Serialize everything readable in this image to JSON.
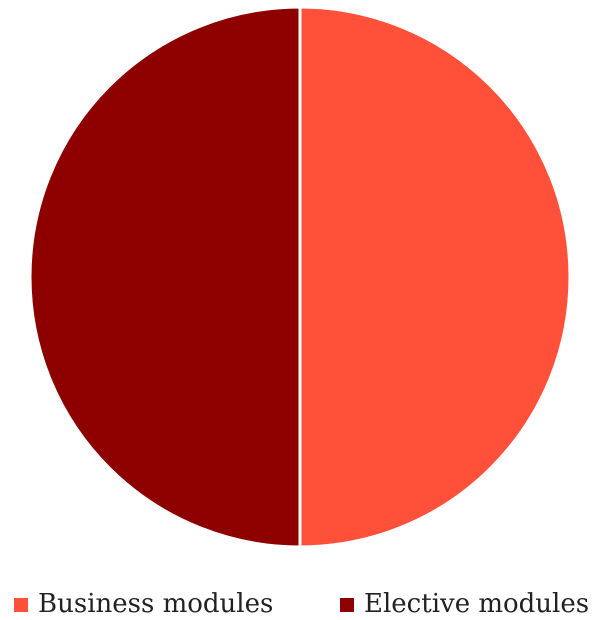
{
  "chart_data": {
    "type": "pie",
    "categories": [
      "Business modules",
      "Elective modules"
    ],
    "values": [
      50,
      50
    ],
    "colors": [
      "#ff5039",
      "#8e0000"
    ],
    "legend": "bottom"
  }
}
